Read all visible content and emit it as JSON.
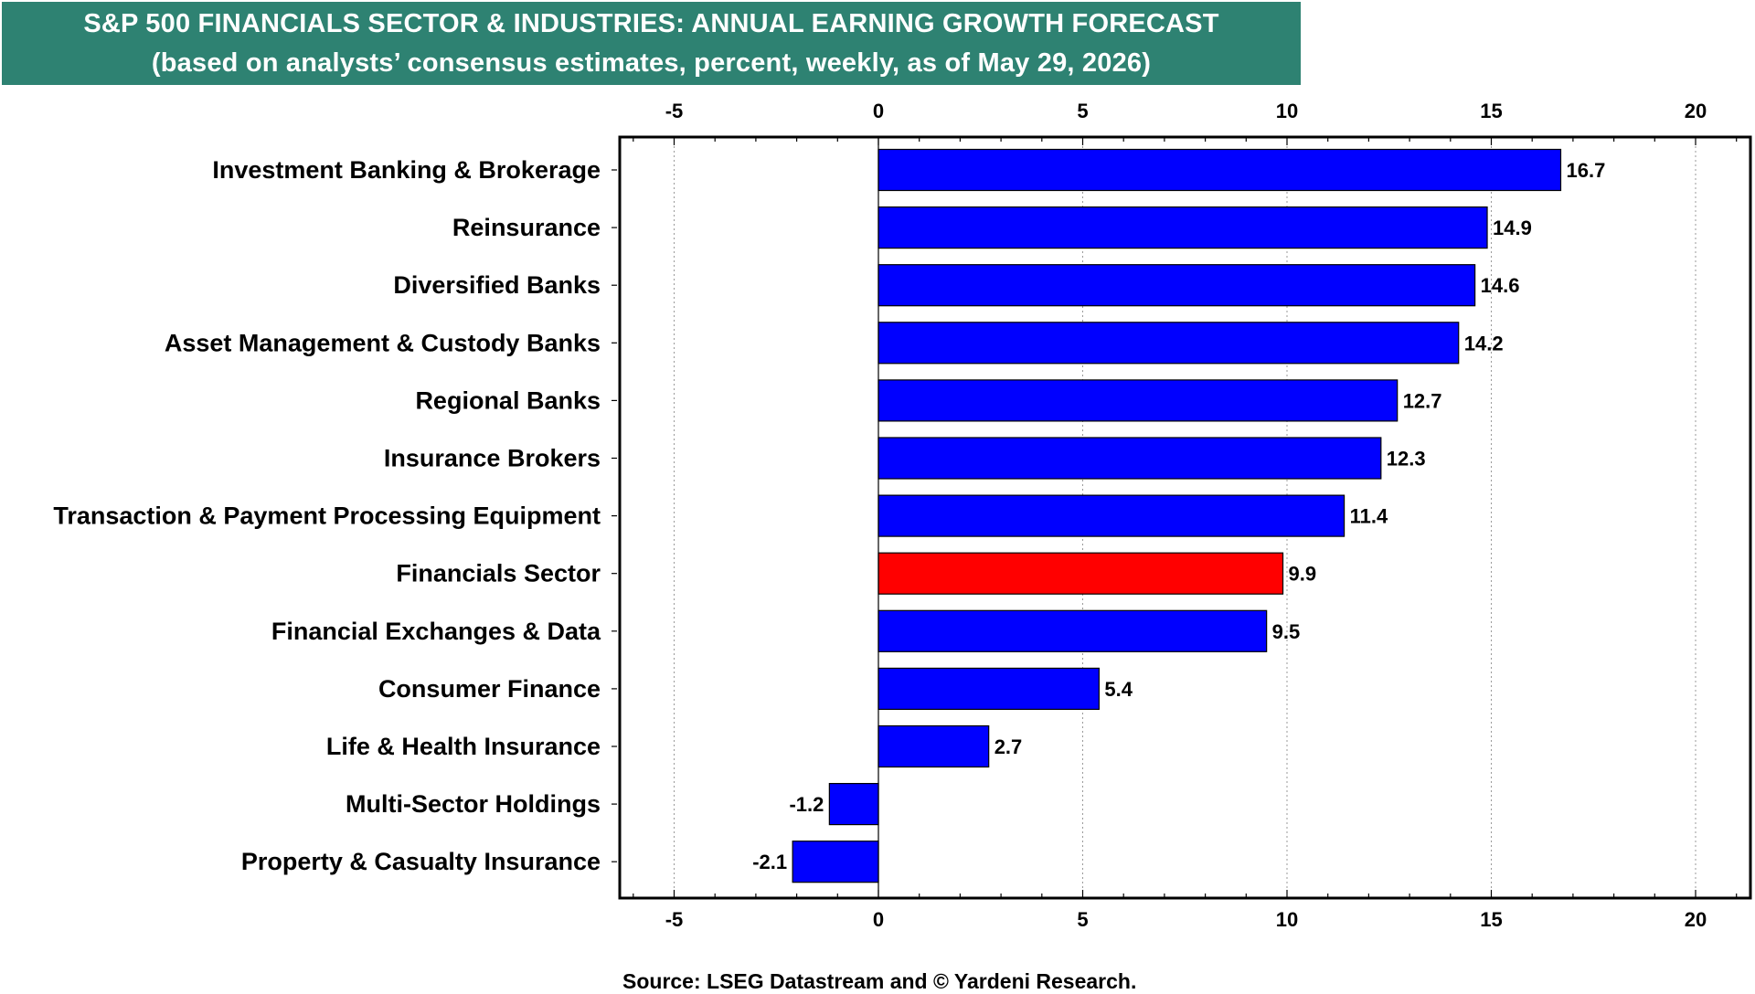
{
  "title": {
    "line1": "S&P 500 FINANCIALS SECTOR & INDUSTRIES: ANNUAL EARNING GROWTH FORECAST",
    "line2": "(based on analysts’ consensus estimates, percent, weekly, as of May 29, 2026)",
    "background_color": "#2e8272",
    "text_color": "#ffffff"
  },
  "source": "Source: LSEG Datastream and © Yardeni Research.",
  "chart_data": {
    "type": "bar",
    "orientation": "horizontal",
    "xlim": [
      -5,
      20
    ],
    "x_ticks": [
      -5,
      0,
      5,
      10,
      15,
      20
    ],
    "tick_labels_top_and_bottom": true,
    "grid": "vertical dotted gridlines",
    "categories": [
      "Investment Banking & Brokerage",
      "Reinsurance",
      "Diversified Banks",
      "Asset Management & Custody Banks",
      "Regional Banks",
      "Insurance Brokers",
      "Transaction & Payment Processing Equipment",
      "Financials Sector",
      "Financial Exchanges & Data",
      "Consumer Finance",
      "Life & Health Insurance",
      "Multi-Sector Holdings",
      "Property & Casualty Insurance"
    ],
    "values": [
      16.7,
      14.9,
      14.6,
      14.2,
      12.7,
      12.3,
      11.4,
      9.9,
      9.5,
      5.4,
      2.7,
      -1.2,
      -2.1
    ],
    "data_labels": [
      "16.7",
      "14.9",
      "14.6",
      "14.2",
      "12.7",
      "12.3",
      "11.4",
      "9.9",
      "9.5",
      "5.4",
      "2.7",
      "-1.2",
      "-2.1"
    ],
    "bar_colors": [
      "#0000ff",
      "#0000ff",
      "#0000ff",
      "#0000ff",
      "#0000ff",
      "#0000ff",
      "#0000ff",
      "#ff0000",
      "#0000ff",
      "#0000ff",
      "#0000ff",
      "#0000ff",
      "#0000ff"
    ]
  }
}
